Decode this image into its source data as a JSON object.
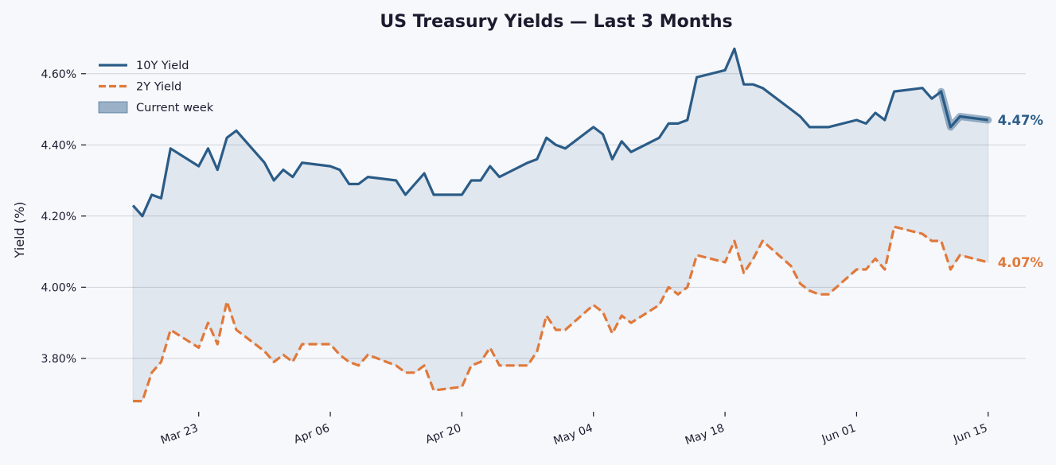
{
  "chart_data": {
    "type": "line",
    "title": "US Treasury Yields — Last 3 Months",
    "xlabel": "",
    "ylabel": "Yield (%)",
    "ylim": [
      3.65,
      4.7
    ],
    "xlim": [
      "2024-03-11",
      "2024-06-19"
    ],
    "x_ticks": [
      "2024-03-23",
      "2024-04-06",
      "2024-04-20",
      "2024-05-04",
      "2024-05-18",
      "2024-06-01",
      "2024-06-15"
    ],
    "x_tick_labels": [
      "Mar 23",
      "Apr 06",
      "Apr 20",
      "May 04",
      "May 18",
      "Jun 01",
      "Jun 15"
    ],
    "y_ticks": [
      3.8,
      4.0,
      4.2,
      4.4,
      4.6
    ],
    "y_tick_labels": [
      "3.80%",
      "4.00%",
      "4.20%",
      "4.40%",
      "4.60%"
    ],
    "grid": "horizontal",
    "legend_position": "top-left",
    "colors": {
      "ten_year": "#2b5c87",
      "two_year": "#e0793a",
      "fill": "#2b5c87",
      "grid": "#cfd3da",
      "text": "#1b1b2f"
    },
    "x": [
      "2024-03-16",
      "2024-03-17",
      "2024-03-18",
      "2024-03-19",
      "2024-03-20",
      "2024-03-23",
      "2024-03-24",
      "2024-03-25",
      "2024-03-26",
      "2024-03-27",
      "2024-03-30",
      "2024-03-31",
      "2024-04-01",
      "2024-04-02",
      "2024-04-03",
      "2024-04-06",
      "2024-04-07",
      "2024-04-08",
      "2024-04-09",
      "2024-04-10",
      "2024-04-13",
      "2024-04-14",
      "2024-04-15",
      "2024-04-16",
      "2024-04-17",
      "2024-04-20",
      "2024-04-21",
      "2024-04-22",
      "2024-04-23",
      "2024-04-24",
      "2024-04-27",
      "2024-04-28",
      "2024-04-29",
      "2024-04-30",
      "2024-05-01",
      "2024-05-04",
      "2024-05-05",
      "2024-05-06",
      "2024-05-07",
      "2024-05-08",
      "2024-05-11",
      "2024-05-12",
      "2024-05-13",
      "2024-05-14",
      "2024-05-15",
      "2024-05-18",
      "2024-05-19",
      "2024-05-20",
      "2024-05-21",
      "2024-05-22",
      "2024-05-25",
      "2024-05-26",
      "2024-05-27",
      "2024-05-28",
      "2024-05-29",
      "2024-06-01",
      "2024-06-02",
      "2024-06-03",
      "2024-06-04",
      "2024-06-05",
      "2024-06-08",
      "2024-06-09",
      "2024-06-10",
      "2024-06-11",
      "2024-06-12",
      "2024-06-15"
    ],
    "series": [
      {
        "name": "10Y Yield",
        "style": "solid",
        "end_label": "4.47%",
        "values": [
          4.23,
          4.2,
          4.26,
          4.25,
          4.39,
          4.34,
          4.39,
          4.33,
          4.42,
          4.44,
          4.35,
          4.3,
          4.33,
          4.31,
          4.35,
          4.34,
          4.33,
          4.29,
          4.29,
          4.31,
          4.3,
          4.26,
          4.29,
          4.32,
          4.26,
          4.26,
          4.3,
          4.3,
          4.34,
          4.31,
          4.35,
          4.36,
          4.42,
          4.4,
          4.39,
          4.45,
          4.43,
          4.36,
          4.41,
          4.38,
          4.42,
          4.46,
          4.46,
          4.47,
          4.59,
          4.61,
          4.67,
          4.57,
          4.57,
          4.56,
          4.5,
          4.48,
          4.45,
          4.45,
          4.45,
          4.47,
          4.46,
          4.49,
          4.47,
          4.55,
          4.56,
          4.53,
          4.55,
          4.45,
          4.48,
          4.47
        ]
      },
      {
        "name": "2Y Yield",
        "style": "dashed",
        "end_label": "4.07%",
        "values": [
          3.68,
          3.68,
          3.76,
          3.79,
          3.88,
          3.83,
          3.9,
          3.84,
          3.96,
          3.88,
          3.82,
          3.79,
          3.81,
          3.79,
          3.84,
          3.84,
          3.81,
          3.79,
          3.78,
          3.81,
          3.78,
          3.76,
          3.76,
          3.78,
          3.71,
          3.72,
          3.78,
          3.79,
          3.83,
          3.78,
          3.78,
          3.82,
          3.92,
          3.88,
          3.88,
          3.95,
          3.93,
          3.87,
          3.92,
          3.9,
          3.95,
          4.0,
          3.98,
          4.0,
          4.09,
          4.07,
          4.13,
          4.04,
          4.08,
          4.13,
          4.06,
          4.01,
          3.99,
          3.98,
          3.98,
          4.05,
          4.05,
          4.08,
          4.05,
          4.17,
          4.15,
          4.13,
          4.13,
          4.05,
          4.09,
          4.07
        ]
      }
    ],
    "shaded_band": {
      "between": [
        "2Y Yield",
        "10Y Yield"
      ],
      "from": "2024-03-16",
      "to": "2024-06-15"
    },
    "highlight": {
      "name": "Current week",
      "series": "10Y Yield",
      "from": "2024-06-10",
      "to": "2024-06-15"
    }
  }
}
